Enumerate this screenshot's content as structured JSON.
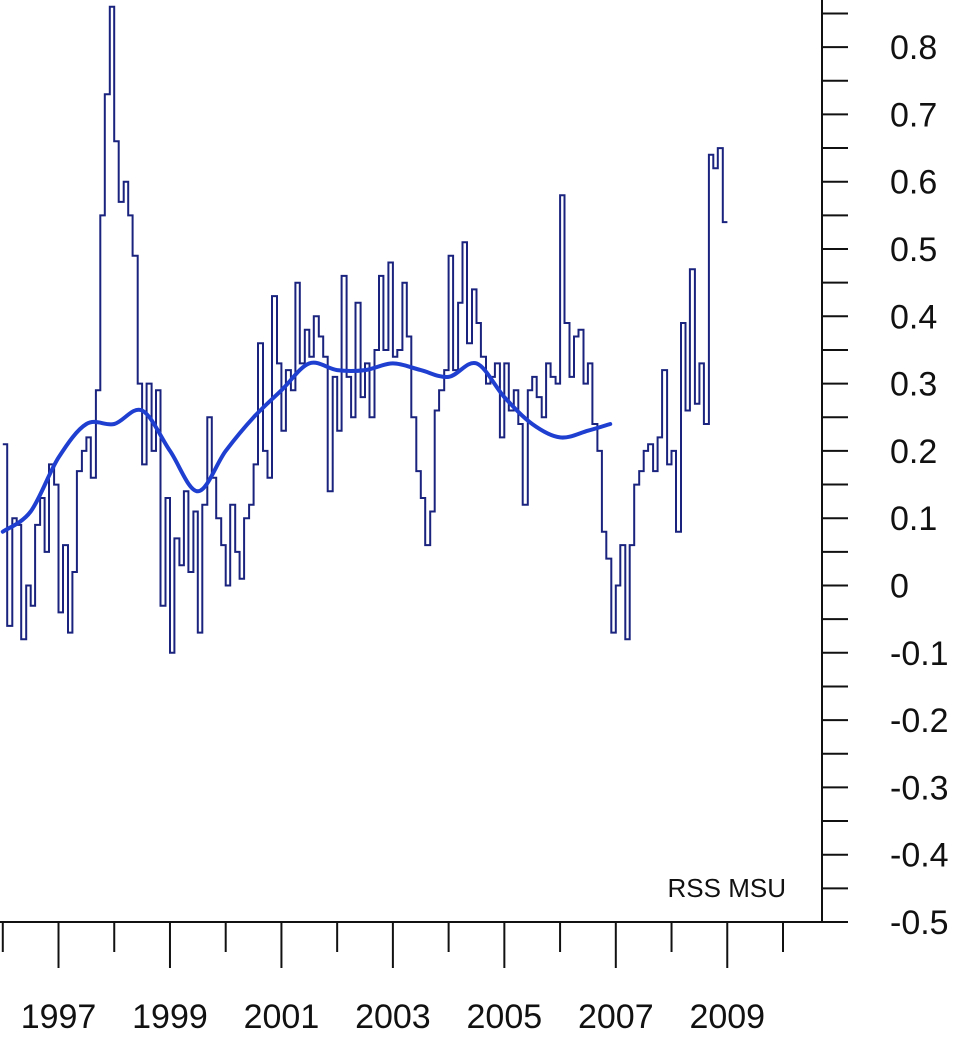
{
  "chart_data": {
    "type": "line",
    "title": "",
    "xlabel": "",
    "ylabel": "",
    "annotation": "RSS MSU",
    "xlim": [
      1995.95,
      2010.7
    ],
    "ylim": [
      -0.5,
      0.87
    ],
    "y_ticks": [
      "0.8",
      "0.7",
      "0.6",
      "0.5",
      "0.4",
      "0.3",
      "0.2",
      "0.1",
      "0",
      "-0.1",
      "-0.2",
      "-0.3",
      "-0.4",
      "-0.5"
    ],
    "x_tick_labels": [
      {
        "x": 1997,
        "label": "1997"
      },
      {
        "x": 1999,
        "label": "1999"
      },
      {
        "x": 2001,
        "label": "2001"
      },
      {
        "x": 2003,
        "label": "2003"
      },
      {
        "x": 2005,
        "label": "2005"
      },
      {
        "x": 2007,
        "label": "2007"
      },
      {
        "x": 2009,
        "label": "2009"
      }
    ],
    "grid": false,
    "colors": {
      "monthly": "#1a237e",
      "smoothed": "#1f3fd1",
      "axis": "#111111"
    },
    "series": [
      {
        "style": "step",
        "values": [
          [
            1996.0,
            0.21
          ],
          [
            1996.08,
            -0.06
          ],
          [
            1996.17,
            0.1
          ],
          [
            1996.25,
            0.09
          ],
          [
            1996.33,
            -0.08
          ],
          [
            1996.42,
            0.0
          ],
          [
            1996.5,
            -0.03
          ],
          [
            1996.58,
            0.09
          ],
          [
            1996.67,
            0.13
          ],
          [
            1996.75,
            0.05
          ],
          [
            1996.83,
            0.18
          ],
          [
            1996.92,
            0.15
          ],
          [
            1997.0,
            -0.04
          ],
          [
            1997.08,
            0.06
          ],
          [
            1997.17,
            -0.07
          ],
          [
            1997.25,
            0.02
          ],
          [
            1997.33,
            0.17
          ],
          [
            1997.42,
            0.2
          ],
          [
            1997.5,
            0.22
          ],
          [
            1997.58,
            0.16
          ],
          [
            1997.67,
            0.29
          ],
          [
            1997.75,
            0.55
          ],
          [
            1997.83,
            0.73
          ],
          [
            1997.92,
            0.86
          ],
          [
            1998.0,
            0.66
          ],
          [
            1998.08,
            0.57
          ],
          [
            1998.17,
            0.6
          ],
          [
            1998.25,
            0.55
          ],
          [
            1998.33,
            0.49
          ],
          [
            1998.42,
            0.3
          ],
          [
            1998.5,
            0.18
          ],
          [
            1998.58,
            0.3
          ],
          [
            1998.67,
            0.2
          ],
          [
            1998.75,
            0.29
          ],
          [
            1998.83,
            -0.03
          ],
          [
            1998.92,
            0.13
          ],
          [
            1999.0,
            -0.1
          ],
          [
            1999.08,
            0.07
          ],
          [
            1999.17,
            0.03
          ],
          [
            1999.25,
            0.14
          ],
          [
            1999.33,
            0.02
          ],
          [
            1999.42,
            0.11
          ],
          [
            1999.5,
            -0.07
          ],
          [
            1999.58,
            0.12
          ],
          [
            1999.67,
            0.25
          ],
          [
            1999.75,
            0.16
          ],
          [
            1999.83,
            0.1
          ],
          [
            1999.92,
            0.06
          ],
          [
            2000.0,
            0.0
          ],
          [
            2000.08,
            0.12
          ],
          [
            2000.17,
            0.05
          ],
          [
            2000.25,
            0.01
          ],
          [
            2000.33,
            0.1
          ],
          [
            2000.42,
            0.12
          ],
          [
            2000.5,
            0.18
          ],
          [
            2000.58,
            0.36
          ],
          [
            2000.67,
            0.2
          ],
          [
            2000.75,
            0.16
          ],
          [
            2000.83,
            0.43
          ],
          [
            2000.92,
            0.33
          ],
          [
            2001.0,
            0.23
          ],
          [
            2001.08,
            0.32
          ],
          [
            2001.17,
            0.29
          ],
          [
            2001.25,
            0.45
          ],
          [
            2001.33,
            0.33
          ],
          [
            2001.42,
            0.38
          ],
          [
            2001.5,
            0.34
          ],
          [
            2001.58,
            0.4
          ],
          [
            2001.67,
            0.37
          ],
          [
            2001.75,
            0.34
          ],
          [
            2001.83,
            0.14
          ],
          [
            2001.92,
            0.31
          ],
          [
            2002.0,
            0.23
          ],
          [
            2002.08,
            0.46
          ],
          [
            2002.17,
            0.31
          ],
          [
            2002.25,
            0.25
          ],
          [
            2002.33,
            0.42
          ],
          [
            2002.42,
            0.28
          ],
          [
            2002.5,
            0.33
          ],
          [
            2002.58,
            0.25
          ],
          [
            2002.67,
            0.35
          ],
          [
            2002.75,
            0.46
          ],
          [
            2002.83,
            0.35
          ],
          [
            2002.92,
            0.48
          ],
          [
            2003.0,
            0.34
          ],
          [
            2003.08,
            0.35
          ],
          [
            2003.17,
            0.45
          ],
          [
            2003.25,
            0.37
          ],
          [
            2003.33,
            0.25
          ],
          [
            2003.42,
            0.17
          ],
          [
            2003.5,
            0.13
          ],
          [
            2003.58,
            0.06
          ],
          [
            2003.67,
            0.11
          ],
          [
            2003.75,
            0.26
          ],
          [
            2003.83,
            0.29
          ],
          [
            2003.92,
            0.32
          ],
          [
            2004.0,
            0.49
          ],
          [
            2004.08,
            0.32
          ],
          [
            2004.17,
            0.42
          ],
          [
            2004.25,
            0.51
          ],
          [
            2004.33,
            0.36
          ],
          [
            2004.42,
            0.44
          ],
          [
            2004.5,
            0.39
          ],
          [
            2004.58,
            0.34
          ],
          [
            2004.67,
            0.3
          ],
          [
            2004.75,
            0.31
          ],
          [
            2004.83,
            0.33
          ],
          [
            2004.92,
            0.22
          ],
          [
            2005.0,
            0.33
          ],
          [
            2005.08,
            0.26
          ],
          [
            2005.17,
            0.29
          ],
          [
            2005.25,
            0.24
          ],
          [
            2005.33,
            0.12
          ],
          [
            2005.42,
            0.29
          ],
          [
            2005.5,
            0.31
          ],
          [
            2005.58,
            0.28
          ],
          [
            2005.67,
            0.25
          ],
          [
            2005.75,
            0.33
          ],
          [
            2005.83,
            0.31
          ],
          [
            2005.92,
            0.3
          ],
          [
            2006.0,
            0.58
          ],
          [
            2006.08,
            0.39
          ],
          [
            2006.17,
            0.31
          ],
          [
            2006.25,
            0.37
          ],
          [
            2006.33,
            0.38
          ],
          [
            2006.42,
            0.3
          ],
          [
            2006.5,
            0.33
          ],
          [
            2006.58,
            0.24
          ],
          [
            2006.67,
            0.2
          ],
          [
            2006.75,
            0.08
          ],
          [
            2006.83,
            0.04
          ],
          [
            2006.92,
            -0.07
          ],
          [
            2007.0,
            0.0
          ],
          [
            2007.08,
            0.06
          ],
          [
            2007.17,
            -0.08
          ],
          [
            2007.25,
            0.06
          ],
          [
            2007.33,
            0.15
          ],
          [
            2007.42,
            0.17
          ],
          [
            2007.5,
            0.2
          ],
          [
            2007.58,
            0.21
          ],
          [
            2007.67,
            0.17
          ],
          [
            2007.75,
            0.22
          ],
          [
            2007.83,
            0.32
          ],
          [
            2007.92,
            0.18
          ],
          [
            2008.0,
            0.2
          ],
          [
            2008.08,
            0.08
          ],
          [
            2008.17,
            0.39
          ],
          [
            2008.25,
            0.26
          ],
          [
            2008.33,
            0.47
          ],
          [
            2008.42,
            0.27
          ],
          [
            2008.5,
            0.33
          ],
          [
            2008.58,
            0.24
          ],
          [
            2008.67,
            0.64
          ],
          [
            2008.75,
            0.62
          ],
          [
            2008.83,
            0.65
          ],
          [
            2008.92,
            0.54
          ]
        ]
      },
      {
        "style": "smooth",
        "values": [
          [
            1996.0,
            0.08
          ],
          [
            1996.5,
            0.11
          ],
          [
            1997.0,
            0.19
          ],
          [
            1997.5,
            0.24
          ],
          [
            1998.0,
            0.24
          ],
          [
            1998.5,
            0.26
          ],
          [
            1999.0,
            0.2
          ],
          [
            1999.5,
            0.14
          ],
          [
            2000.0,
            0.2
          ],
          [
            2000.5,
            0.25
          ],
          [
            2001.0,
            0.29
          ],
          [
            2001.5,
            0.33
          ],
          [
            2002.0,
            0.32
          ],
          [
            2002.5,
            0.32
          ],
          [
            2003.0,
            0.33
          ],
          [
            2003.5,
            0.32
          ],
          [
            2004.0,
            0.31
          ],
          [
            2004.5,
            0.33
          ],
          [
            2005.0,
            0.28
          ],
          [
            2005.5,
            0.24
          ],
          [
            2006.0,
            0.22
          ],
          [
            2006.5,
            0.23
          ],
          [
            2006.9,
            0.24
          ]
        ]
      }
    ]
  }
}
